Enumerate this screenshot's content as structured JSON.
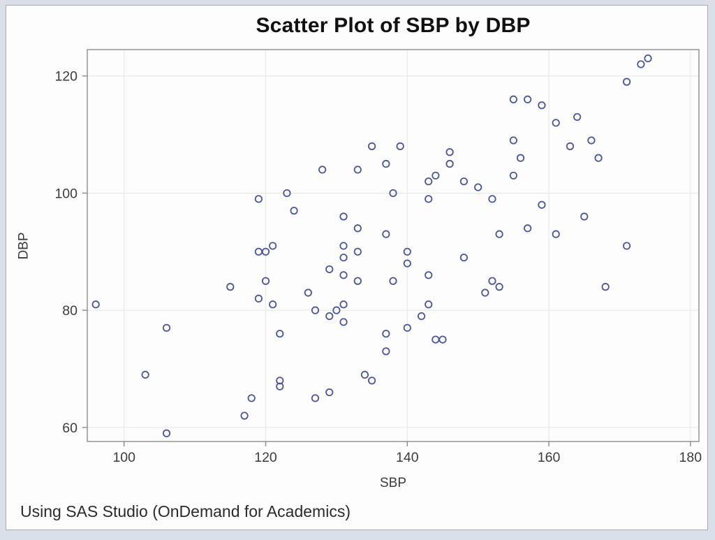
{
  "page": {
    "background_color": "#d9e0e9",
    "card_background": "#fdfdfd",
    "card_border_color": "#aaaaaa"
  },
  "footer": {
    "text": "Using SAS Studio (OnDemand for Academics)"
  },
  "chart_data": {
    "type": "scatter",
    "title": "Scatter Plot of SBP by DBP",
    "xlabel": "SBP",
    "ylabel": "DBP",
    "x_ticks": [
      100,
      120,
      140,
      160,
      180
    ],
    "y_ticks": [
      60,
      80,
      100,
      120
    ],
    "xlim": [
      94.8,
      181.2
    ],
    "ylim": [
      57.6,
      124.5
    ],
    "grid": true,
    "legend": "none",
    "frame_color": "#8c8c8c",
    "gridline_color": "#e6e6e6",
    "tick_label_color": "#3c3c3c",
    "marker": {
      "shape": "circle-open",
      "color": "#4a569c",
      "radius": 4.7,
      "stroke_width": 1.8
    },
    "points": [
      [
        96,
        81
      ],
      [
        103,
        69
      ],
      [
        106,
        77
      ],
      [
        106,
        59
      ],
      [
        115,
        84
      ],
      [
        117,
        62
      ],
      [
        118,
        65
      ],
      [
        119,
        99
      ],
      [
        119,
        90
      ],
      [
        119,
        82
      ],
      [
        120,
        90
      ],
      [
        120,
        85
      ],
      [
        121,
        91
      ],
      [
        121,
        81
      ],
      [
        122,
        76
      ],
      [
        122,
        68
      ],
      [
        122,
        67
      ],
      [
        123,
        100
      ],
      [
        124,
        97
      ],
      [
        126,
        83
      ],
      [
        127,
        80
      ],
      [
        127,
        65
      ],
      [
        128,
        104
      ],
      [
        129,
        87
      ],
      [
        129,
        79
      ],
      [
        129,
        66
      ],
      [
        130,
        80
      ],
      [
        131,
        96
      ],
      [
        131,
        91
      ],
      [
        131,
        89
      ],
      [
        131,
        86
      ],
      [
        131,
        81
      ],
      [
        131,
        78
      ],
      [
        133,
        104
      ],
      [
        133,
        94
      ],
      [
        133,
        90
      ],
      [
        133,
        85
      ],
      [
        134,
        69
      ],
      [
        135,
        108
      ],
      [
        135,
        68
      ],
      [
        137,
        105
      ],
      [
        137,
        93
      ],
      [
        137,
        76
      ],
      [
        137,
        73
      ],
      [
        138,
        100
      ],
      [
        138,
        85
      ],
      [
        139,
        108
      ],
      [
        140,
        90
      ],
      [
        140,
        88
      ],
      [
        140,
        77
      ],
      [
        142,
        79
      ],
      [
        143,
        102
      ],
      [
        143,
        99
      ],
      [
        143,
        86
      ],
      [
        143,
        81
      ],
      [
        144,
        103
      ],
      [
        144,
        75
      ],
      [
        145,
        75
      ],
      [
        146,
        107
      ],
      [
        146,
        105
      ],
      [
        148,
        102
      ],
      [
        148,
        89
      ],
      [
        150,
        101
      ],
      [
        151,
        83
      ],
      [
        152,
        99
      ],
      [
        152,
        85
      ],
      [
        153,
        93
      ],
      [
        153,
        84
      ],
      [
        155,
        116
      ],
      [
        155,
        109
      ],
      [
        155,
        103
      ],
      [
        156,
        106
      ],
      [
        157,
        116
      ],
      [
        157,
        94
      ],
      [
        159,
        115
      ],
      [
        159,
        98
      ],
      [
        161,
        112
      ],
      [
        161,
        93
      ],
      [
        163,
        108
      ],
      [
        164,
        113
      ],
      [
        165,
        96
      ],
      [
        166,
        109
      ],
      [
        167,
        106
      ],
      [
        168,
        84
      ],
      [
        171,
        119
      ],
      [
        171,
        91
      ],
      [
        173,
        122
      ],
      [
        174,
        123
      ]
    ]
  }
}
